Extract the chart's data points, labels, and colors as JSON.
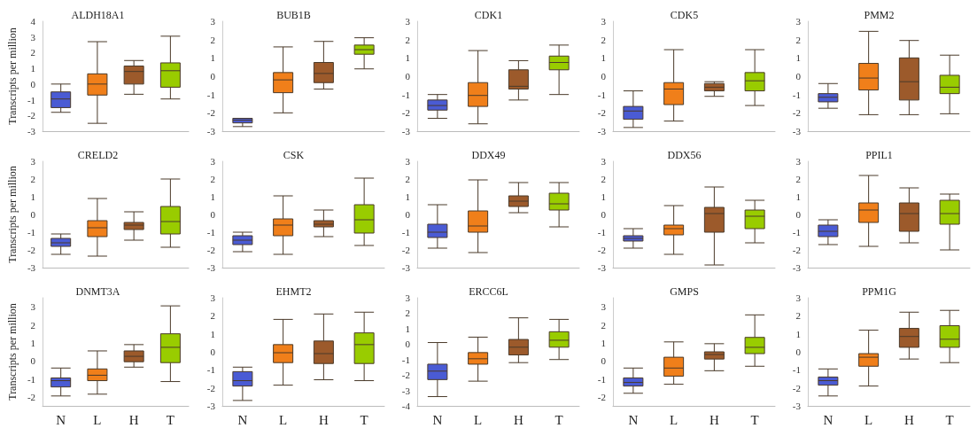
{
  "chart_data": [
    {
      "type": "box",
      "title": "ALDH18A1",
      "ylabel": "Transcripts per million",
      "categories": [
        null,
        null,
        null,
        null
      ],
      "colors": [
        "#4a5bd4",
        "#f07f1a",
        "#9c5a2b",
        "#99cc00"
      ],
      "ylim": [
        -3,
        4
      ],
      "yticks": [
        -3,
        -2,
        -1,
        0,
        1,
        2,
        3,
        4
      ],
      "tick_labels": "y",
      "boxes": [
        {
          "low": -1.8,
          "q1": -1.5,
          "median": -0.95,
          "q3": -0.5,
          "high": 0.0
        },
        {
          "low": -2.5,
          "q1": -0.7,
          "median": 0.0,
          "q3": 0.65,
          "high": 2.7
        },
        {
          "low": -0.65,
          "q1": 0.0,
          "median": 0.8,
          "q3": 1.15,
          "high": 1.5
        },
        {
          "low": -0.95,
          "q1": -0.2,
          "median": 0.85,
          "q3": 1.35,
          "high": 3.05
        }
      ]
    },
    {
      "type": "box",
      "title": "BUB1B",
      "categories": [
        null,
        null,
        null,
        null
      ],
      "colors": [
        "#4a5bd4",
        "#f07f1a",
        "#9c5a2b",
        "#99cc00"
      ],
      "ylim": [
        -3,
        3
      ],
      "yticks": [
        -3,
        -2,
        -1,
        0,
        1,
        2,
        3
      ],
      "tick_labels": "y",
      "boxes": [
        {
          "low": -2.75,
          "q1": -2.55,
          "median": -2.4,
          "q3": -2.3,
          "high": -2.3
        },
        {
          "low": -2.0,
          "q1": -0.9,
          "median": -0.2,
          "q3": 0.2,
          "high": 1.6
        },
        {
          "low": -0.7,
          "q1": -0.35,
          "median": 0.15,
          "q3": 0.75,
          "high": 1.9
        },
        {
          "low": 0.4,
          "q1": 1.2,
          "median": 1.45,
          "q3": 1.7,
          "high": 2.1
        }
      ]
    },
    {
      "type": "box",
      "title": "CDK1",
      "categories": [
        null,
        null,
        null,
        null
      ],
      "colors": [
        "#4a5bd4",
        "#f07f1a",
        "#9c5a2b",
        "#99cc00"
      ],
      "ylim": [
        -3,
        3
      ],
      "yticks": [
        -3,
        -2,
        -1,
        0,
        1,
        2,
        3
      ],
      "tick_labels": "y",
      "boxes": [
        {
          "low": -2.3,
          "q1": -1.85,
          "median": -1.6,
          "q3": -1.3,
          "high": -1.0
        },
        {
          "low": -2.6,
          "q1": -1.65,
          "median": -1.05,
          "q3": -0.35,
          "high": 1.4
        },
        {
          "low": -1.3,
          "q1": -0.7,
          "median": -0.55,
          "q3": 0.35,
          "high": 0.85
        },
        {
          "low": -1.0,
          "q1": 0.35,
          "median": 0.75,
          "q3": 1.1,
          "high": 1.7
        }
      ]
    },
    {
      "type": "box",
      "title": "CDK5",
      "categories": [
        null,
        null,
        null,
        null
      ],
      "colors": [
        "#4a5bd4",
        "#f07f1a",
        "#9c5a2b",
        "#99cc00"
      ],
      "ylim": [
        -3,
        3
      ],
      "yticks": [
        -3,
        -2,
        -1,
        0,
        1,
        2,
        3
      ],
      "tick_labels": "y",
      "boxes": [
        {
          "low": -2.8,
          "q1": -2.35,
          "median": -1.9,
          "q3": -1.65,
          "high": -0.8
        },
        {
          "low": -2.45,
          "q1": -1.55,
          "median": -0.7,
          "q3": -0.35,
          "high": 1.45
        },
        {
          "low": -1.1,
          "q1": -0.8,
          "median": -0.6,
          "q3": -0.4,
          "high": -0.3
        },
        {
          "low": -1.6,
          "q1": -0.8,
          "median": -0.25,
          "q3": 0.2,
          "high": 1.45
        }
      ]
    },
    {
      "type": "box",
      "title": "PMM2",
      "categories": [
        null,
        null,
        null,
        null
      ],
      "colors": [
        "#4a5bd4",
        "#f07f1a",
        "#9c5a2b",
        "#99cc00"
      ],
      "ylim": [
        -3,
        3
      ],
      "yticks": [
        -3,
        -2,
        -1,
        0,
        1,
        2,
        3
      ],
      "tick_labels": "y",
      "boxes": [
        {
          "low": -1.75,
          "q1": -1.4,
          "median": -1.15,
          "q3": -0.95,
          "high": -0.4
        },
        {
          "low": -2.1,
          "q1": -0.75,
          "median": -0.1,
          "q3": 0.7,
          "high": 2.45
        },
        {
          "low": -2.1,
          "q1": -1.3,
          "median": -0.3,
          "q3": 1.0,
          "high": 1.95
        },
        {
          "low": -2.05,
          "q1": -0.95,
          "median": -0.6,
          "q3": 0.05,
          "high": 1.15
        }
      ]
    },
    {
      "type": "box",
      "title": "CRELD2",
      "ylabel": "Transcripts per million",
      "categories": [
        null,
        null,
        null,
        null
      ],
      "colors": [
        "#4a5bd4",
        "#f07f1a",
        "#9c5a2b",
        "#99cc00"
      ],
      "ylim": [
        -3,
        3
      ],
      "yticks": [
        -3,
        -2,
        -1,
        0,
        1,
        2,
        3
      ],
      "tick_labels": "y",
      "boxes": [
        {
          "low": -2.25,
          "q1": -1.8,
          "median": -1.6,
          "q3": -1.35,
          "high": -1.1
        },
        {
          "low": -2.35,
          "q1": -1.25,
          "median": -0.75,
          "q3": -0.35,
          "high": 0.9
        },
        {
          "low": -1.45,
          "q1": -0.85,
          "median": -0.6,
          "q3": -0.45,
          "high": 0.15
        },
        {
          "low": -1.85,
          "q1": -1.1,
          "median": -0.4,
          "q3": 0.45,
          "high": 2.0
        }
      ]
    },
    {
      "type": "box",
      "title": "CSK",
      "categories": [
        null,
        null,
        null,
        null
      ],
      "colors": [
        "#4a5bd4",
        "#f07f1a",
        "#9c5a2b",
        "#99cc00"
      ],
      "ylim": [
        -3,
        3
      ],
      "yticks": [
        -3,
        -2,
        -1,
        0,
        1,
        2,
        3
      ],
      "tick_labels": "y",
      "boxes": [
        {
          "low": -2.1,
          "q1": -1.7,
          "median": -1.45,
          "q3": -1.2,
          "high": -1.0
        },
        {
          "low": -2.25,
          "q1": -1.2,
          "median": -0.6,
          "q3": -0.25,
          "high": 1.05
        },
        {
          "low": -1.25,
          "q1": -0.7,
          "median": -0.55,
          "q3": -0.35,
          "high": 0.25
        },
        {
          "low": -1.75,
          "q1": -1.05,
          "median": -0.3,
          "q3": 0.55,
          "high": 2.05
        }
      ]
    },
    {
      "type": "box",
      "title": "DDX49",
      "categories": [
        null,
        null,
        null,
        null
      ],
      "colors": [
        "#4a5bd4",
        "#f07f1a",
        "#9c5a2b",
        "#99cc00"
      ],
      "ylim": [
        -3,
        3
      ],
      "yticks": [
        -3,
        -2,
        -1,
        0,
        1,
        2,
        3
      ],
      "tick_labels": "y",
      "boxes": [
        {
          "low": -1.9,
          "q1": -1.3,
          "median": -1.0,
          "q3": -0.55,
          "high": 0.55
        },
        {
          "low": -2.15,
          "q1": -1.0,
          "median": -0.65,
          "q3": 0.2,
          "high": 1.95
        },
        {
          "low": 0.1,
          "q1": 0.45,
          "median": 0.75,
          "q3": 1.05,
          "high": 1.8
        },
        {
          "low": -0.7,
          "q1": 0.25,
          "median": 0.6,
          "q3": 1.2,
          "high": 1.8
        }
      ]
    },
    {
      "type": "box",
      "title": "DDX56",
      "categories": [
        null,
        null,
        null,
        null
      ],
      "colors": [
        "#4a5bd4",
        "#f07f1a",
        "#9c5a2b",
        "#99cc00"
      ],
      "ylim": [
        -3,
        3
      ],
      "yticks": [
        -3,
        -2,
        -1,
        0,
        1,
        2,
        3
      ],
      "tick_labels": "y",
      "boxes": [
        {
          "low": -1.9,
          "q1": -1.5,
          "median": -1.35,
          "q3": -1.2,
          "high": -0.8
        },
        {
          "low": -2.25,
          "q1": -1.15,
          "median": -0.8,
          "q3": -0.6,
          "high": 0.5
        },
        {
          "low": -2.85,
          "q1": -1.0,
          "median": 0.05,
          "q3": 0.4,
          "high": 1.55
        },
        {
          "low": -1.6,
          "q1": -0.8,
          "median": -0.1,
          "q3": 0.25,
          "high": 0.8
        }
      ]
    },
    {
      "type": "box",
      "title": "PPIL1",
      "categories": [
        null,
        null,
        null,
        null
      ],
      "colors": [
        "#4a5bd4",
        "#f07f1a",
        "#9c5a2b",
        "#99cc00"
      ],
      "ylim": [
        -3,
        3
      ],
      "yticks": [
        -3,
        -2,
        -1,
        0,
        1,
        2,
        3
      ],
      "tick_labels": "y",
      "boxes": [
        {
          "low": -1.7,
          "q1": -1.25,
          "median": -0.95,
          "q3": -0.6,
          "high": -0.3
        },
        {
          "low": -1.8,
          "q1": -0.45,
          "median": 0.25,
          "q3": 0.65,
          "high": 2.2
        },
        {
          "low": -1.6,
          "q1": -0.95,
          "median": 0.05,
          "q3": 0.65,
          "high": 1.5
        },
        {
          "low": -2.0,
          "q1": -0.55,
          "median": 0.05,
          "q3": 0.8,
          "high": 1.15
        }
      ]
    },
    {
      "type": "box",
      "title": "DNMT3A",
      "ylabel": "Transcripts per million",
      "categories": [
        "N",
        "L",
        "H",
        "T"
      ],
      "colors": [
        "#4a5bd4",
        "#f07f1a",
        "#9c5a2b",
        "#99cc00"
      ],
      "ylim": [
        -2.5,
        3.5
      ],
      "yticks": [
        -2,
        -1,
        0,
        1,
        2,
        3
      ],
      "boxes": [
        {
          "low": -1.95,
          "q1": -1.45,
          "median": -1.1,
          "q3": -0.95,
          "high": -0.4
        },
        {
          "low": -1.85,
          "q1": -1.1,
          "median": -0.8,
          "q3": -0.45,
          "high": 0.55
        },
        {
          "low": -0.35,
          "q1": -0.05,
          "median": 0.25,
          "q3": 0.55,
          "high": 0.9
        },
        {
          "low": -1.15,
          "q1": -0.1,
          "median": 0.75,
          "q3": 1.5,
          "high": 3.05
        }
      ]
    },
    {
      "type": "box",
      "title": "EHMT2",
      "categories": [
        "N",
        "L",
        "H",
        "T"
      ],
      "colors": [
        "#4a5bd4",
        "#f07f1a",
        "#9c5a2b",
        "#99cc00"
      ],
      "ylim": [
        -3,
        3
      ],
      "yticks": [
        -3,
        -2,
        -1,
        0,
        1,
        2,
        3
      ],
      "boxes": [
        {
          "low": -2.7,
          "q1": -1.9,
          "median": -1.6,
          "q3": -1.1,
          "high": -0.85
        },
        {
          "low": -1.85,
          "q1": -0.6,
          "median": -0.05,
          "q3": 0.4,
          "high": 1.8
        },
        {
          "low": -1.55,
          "q1": -0.65,
          "median": -0.1,
          "q3": 0.6,
          "high": 2.1
        },
        {
          "low": -1.6,
          "q1": -0.65,
          "median": 0.4,
          "q3": 1.05,
          "high": 2.2
        }
      ]
    },
    {
      "type": "box",
      "title": "ERCC6L",
      "categories": [
        "N",
        "L",
        "H",
        "T"
      ],
      "colors": [
        "#4a5bd4",
        "#f07f1a",
        "#9c5a2b",
        "#99cc00"
      ],
      "ylim": [
        -4,
        3
      ],
      "yticks": [
        -4,
        -3,
        -2,
        -1,
        0,
        1,
        2,
        3
      ],
      "boxes": [
        {
          "low": -3.4,
          "q1": -2.3,
          "median": -1.75,
          "q3": -1.3,
          "high": 0.1
        },
        {
          "low": -2.4,
          "q1": -1.3,
          "median": -0.95,
          "q3": -0.55,
          "high": 0.45
        },
        {
          "low": -1.2,
          "q1": -0.7,
          "median": -0.2,
          "q3": 0.3,
          "high": 1.7
        },
        {
          "low": -1.0,
          "q1": -0.2,
          "median": 0.25,
          "q3": 0.8,
          "high": 1.6
        }
      ]
    },
    {
      "type": "box",
      "title": "GMPS",
      "categories": [
        "N",
        "L",
        "H",
        "T"
      ],
      "colors": [
        "#4a5bd4",
        "#f07f1a",
        "#9c5a2b",
        "#99cc00"
      ],
      "ylim": [
        -2.5,
        3.5
      ],
      "yticks": [
        -2,
        -1,
        0,
        1,
        2,
        3
      ],
      "boxes": [
        {
          "low": -1.8,
          "q1": -1.4,
          "median": -1.2,
          "q3": -0.95,
          "high": -0.4
        },
        {
          "low": -1.3,
          "q1": -0.85,
          "median": -0.4,
          "q3": 0.2,
          "high": 1.05
        },
        {
          "low": -0.55,
          "q1": 0.1,
          "median": 0.35,
          "q3": 0.5,
          "high": 0.95
        },
        {
          "low": -0.3,
          "q1": 0.4,
          "median": 0.75,
          "q3": 1.3,
          "high": 2.55
        }
      ]
    },
    {
      "type": "box",
      "title": "PPM1G",
      "categories": [
        "N",
        "L",
        "H",
        "T"
      ],
      "colors": [
        "#4a5bd4",
        "#f07f1a",
        "#9c5a2b",
        "#99cc00"
      ],
      "ylim": [
        -3,
        3
      ],
      "yticks": [
        -3,
        -2,
        -1,
        0,
        1,
        2,
        3
      ],
      "boxes": [
        {
          "low": -2.45,
          "q1": -1.85,
          "median": -1.6,
          "q3": -1.4,
          "high": -0.95
        },
        {
          "low": -1.9,
          "q1": -0.8,
          "median": -0.3,
          "q3": -0.1,
          "high": 1.2
        },
        {
          "low": -0.4,
          "q1": 0.25,
          "median": 0.85,
          "q3": 1.3,
          "high": 2.2
        },
        {
          "low": -0.6,
          "q1": 0.25,
          "median": 0.7,
          "q3": 1.45,
          "high": 2.3
        }
      ]
    }
  ]
}
